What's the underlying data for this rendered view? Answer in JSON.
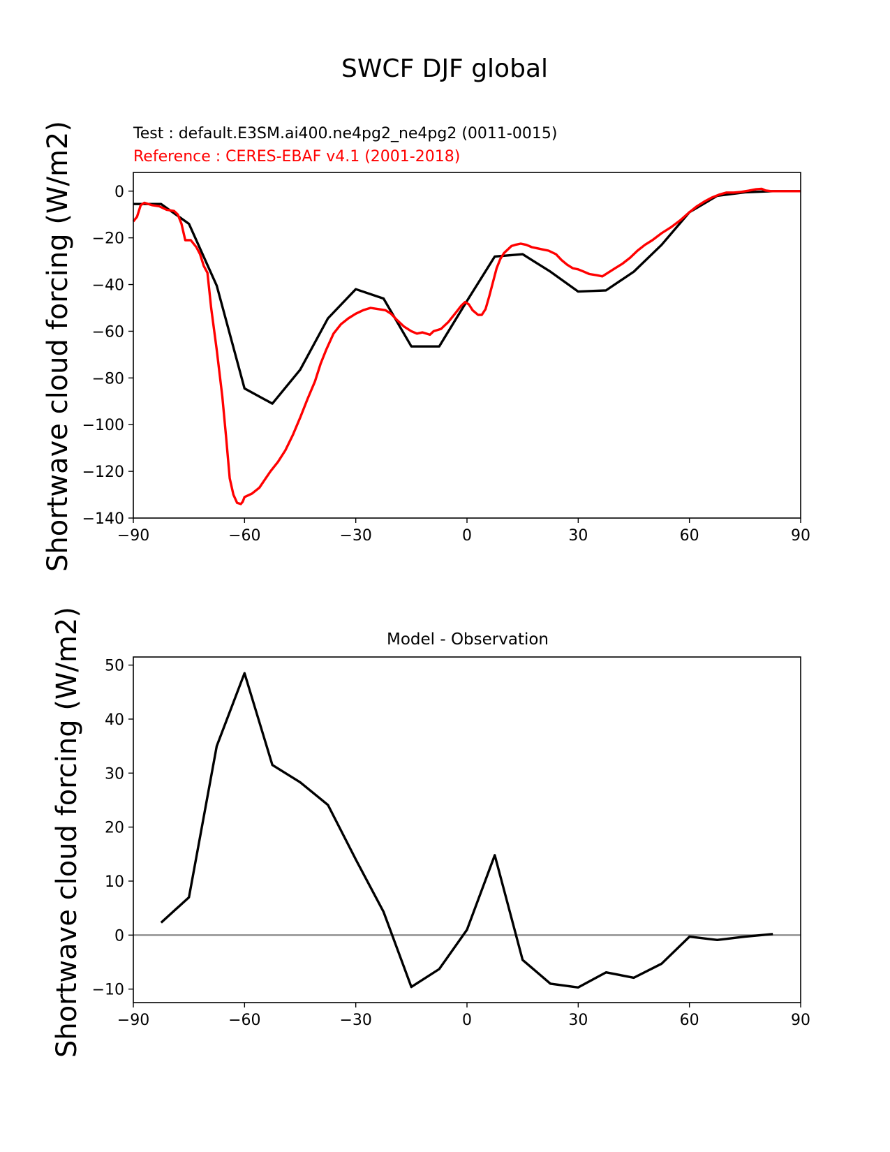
{
  "figure": {
    "title": "SWCF DJF global"
  },
  "chart_data": [
    {
      "type": "line",
      "test_label": "Test : default.E3SM.ai400.ne4pg2_ne4pg2 (0011-0015)",
      "reference_label": "Reference : CERES-EBAF v4.1 (2001-2018)",
      "xlabel": "",
      "ylabel": "Shortwave cloud forcing (W/m2)",
      "xlim": [
        -90,
        90
      ],
      "ylim": [
        -140,
        8
      ],
      "xticks": [
        -90,
        -60,
        -30,
        0,
        30,
        60,
        90
      ],
      "xtick_labels": [
        "−90",
        "−60",
        "−30",
        "0",
        "30",
        "60",
        "90"
      ],
      "yticks": [
        0,
        -20,
        -40,
        -60,
        -80,
        -100,
        -120,
        -140
      ],
      "ytick_labels": [
        "0",
        "−20",
        "−40",
        "−60",
        "−80",
        "−100",
        "−120",
        "−140"
      ],
      "grid": false,
      "series": [
        {
          "color": "#000000",
          "points": [
            [
              -90,
              -5.5
            ],
            [
              -82.5,
              -5.5
            ],
            [
              -75,
              -14
            ],
            [
              -67.5,
              -40.5
            ],
            [
              -60,
              -84.5
            ],
            [
              -52.5,
              -91
            ],
            [
              -45,
              -76.5
            ],
            [
              -37.5,
              -54.5
            ],
            [
              -30,
              -42
            ],
            [
              -22.5,
              -46
            ],
            [
              -15,
              -66.5
            ],
            [
              -7.5,
              -66.5
            ],
            [
              0,
              -47
            ],
            [
              7.5,
              -28
            ],
            [
              15,
              -27
            ],
            [
              22.5,
              -34.5
            ],
            [
              30,
              -43
            ],
            [
              37.5,
              -42.5
            ],
            [
              45,
              -34.5
            ],
            [
              52.5,
              -23
            ],
            [
              60,
              -9
            ],
            [
              67.5,
              -2
            ],
            [
              75,
              -0.5
            ],
            [
              82.5,
              0
            ],
            [
              90,
              0
            ]
          ]
        },
        {
          "color": "#ff0000",
          "points": [
            [
              -90,
              -13
            ],
            [
              -89,
              -11
            ],
            [
              -88,
              -6
            ],
            [
              -87,
              -5
            ],
            [
              -85,
              -6
            ],
            [
              -83,
              -6.5
            ],
            [
              -81,
              -8
            ],
            [
              -79,
              -8.5
            ],
            [
              -78,
              -10
            ],
            [
              -77,
              -14
            ],
            [
              -76,
              -21
            ],
            [
              -74.5,
              -21
            ],
            [
              -73,
              -24
            ],
            [
              -72,
              -27
            ],
            [
              -71,
              -32
            ],
            [
              -70,
              -35
            ],
            [
              -69,
              -50
            ],
            [
              -67.5,
              -68
            ],
            [
              -66,
              -88
            ],
            [
              -65,
              -105
            ],
            [
              -64,
              -123
            ],
            [
              -63,
              -130
            ],
            [
              -62,
              -133.5
            ],
            [
              -61,
              -134
            ],
            [
              -60.5,
              -133
            ],
            [
              -60,
              -131
            ],
            [
              -58,
              -129.5
            ],
            [
              -56,
              -127
            ],
            [
              -54.5,
              -123.5
            ],
            [
              -53,
              -120
            ],
            [
              -51,
              -116
            ],
            [
              -49,
              -111
            ],
            [
              -47,
              -104.5
            ],
            [
              -45,
              -97
            ],
            [
              -43,
              -89
            ],
            [
              -41,
              -81.5
            ],
            [
              -39.5,
              -74
            ],
            [
              -38,
              -68
            ],
            [
              -36,
              -61
            ],
            [
              -34,
              -57
            ],
            [
              -32,
              -54.5
            ],
            [
              -30,
              -52.5
            ],
            [
              -28,
              -51
            ],
            [
              -26,
              -50
            ],
            [
              -24,
              -50.5
            ],
            [
              -22,
              -51
            ],
            [
              -20.5,
              -52.5
            ],
            [
              -19,
              -55
            ],
            [
              -17,
              -58
            ],
            [
              -15,
              -60
            ],
            [
              -13.5,
              -61
            ],
            [
              -12,
              -60.5
            ],
            [
              -10,
              -61.5
            ],
            [
              -9,
              -60
            ],
            [
              -7,
              -59
            ],
            [
              -5,
              -56
            ],
            [
              -3,
              -52
            ],
            [
              -1.5,
              -49
            ],
            [
              -0.5,
              -47.5
            ],
            [
              0.5,
              -48.5
            ],
            [
              1.5,
              -51
            ],
            [
              3,
              -53
            ],
            [
              4,
              -53
            ],
            [
              5,
              -50.5
            ],
            [
              6,
              -45
            ],
            [
              7,
              -39
            ],
            [
              8,
              -33
            ],
            [
              9,
              -29
            ],
            [
              10,
              -26.5
            ],
            [
              11,
              -25
            ],
            [
              12,
              -23.5
            ],
            [
              13,
              -23
            ],
            [
              14.5,
              -22.5
            ],
            [
              16,
              -23
            ],
            [
              17.5,
              -24
            ],
            [
              19,
              -24.5
            ],
            [
              20.5,
              -25
            ],
            [
              22,
              -25.5
            ],
            [
              24,
              -27
            ],
            [
              25.5,
              -29.5
            ],
            [
              27,
              -31.5
            ],
            [
              28.5,
              -33
            ],
            [
              30,
              -33.5
            ],
            [
              31.5,
              -34.5
            ],
            [
              33,
              -35.5
            ],
            [
              35,
              -36
            ],
            [
              36.5,
              -36.5
            ],
            [
              38,
              -35
            ],
            [
              40,
              -33
            ],
            [
              42,
              -31
            ],
            [
              44,
              -28.5
            ],
            [
              46,
              -25.5
            ],
            [
              48,
              -23
            ],
            [
              50,
              -21
            ],
            [
              52.5,
              -18
            ],
            [
              55,
              -15.5
            ],
            [
              57.5,
              -12.5
            ],
            [
              60,
              -9
            ],
            [
              62,
              -6.5
            ],
            [
              64,
              -4.5
            ],
            [
              66,
              -2.8
            ],
            [
              68,
              -1.5
            ],
            [
              70,
              -0.6
            ],
            [
              72,
              -0.6
            ],
            [
              74,
              -0.3
            ],
            [
              76,
              0.2
            ],
            [
              78,
              0.8
            ],
            [
              79.5,
              1
            ],
            [
              80.5,
              0.3
            ],
            [
              82,
              0
            ],
            [
              86,
              0
            ],
            [
              90,
              0
            ]
          ]
        }
      ]
    },
    {
      "type": "line",
      "title": "Model - Observation",
      "xlabel": "",
      "ylabel": "Shortwave cloud forcing (W/m2)",
      "xlim": [
        -90,
        90
      ],
      "ylim": [
        -12.5,
        51.5
      ],
      "xticks": [
        -90,
        -60,
        -30,
        0,
        30,
        60,
        90
      ],
      "xtick_labels": [
        "−90",
        "−60",
        "−30",
        "0",
        "30",
        "60",
        "90"
      ],
      "yticks": [
        50,
        40,
        30,
        20,
        10,
        0,
        -10
      ],
      "ytick_labels": [
        "50",
        "40",
        "30",
        "20",
        "10",
        "0",
        "−10"
      ],
      "grid": false,
      "zero_line_color": "#808080",
      "series": [
        {
          "color": "#000000",
          "points": [
            [
              -82.5,
              2.3
            ],
            [
              -75,
              7
            ],
            [
              -67.5,
              35
            ],
            [
              -60,
              48.5
            ],
            [
              -52.5,
              31.5
            ],
            [
              -45,
              28.3
            ],
            [
              -37.5,
              24.1
            ],
            [
              -30,
              14
            ],
            [
              -22.5,
              4.3
            ],
            [
              -15,
              -9.6
            ],
            [
              -7.5,
              -6.3
            ],
            [
              0,
              1
            ],
            [
              7.5,
              14.8
            ],
            [
              15,
              -4.6
            ],
            [
              22.5,
              -9
            ],
            [
              30,
              -9.7
            ],
            [
              37.5,
              -6.9
            ],
            [
              45,
              -7.9
            ],
            [
              52.5,
              -5.3
            ],
            [
              60,
              -0.3
            ],
            [
              67.5,
              -0.9
            ],
            [
              75,
              -0.3
            ],
            [
              82.5,
              0.2
            ]
          ]
        }
      ]
    }
  ]
}
